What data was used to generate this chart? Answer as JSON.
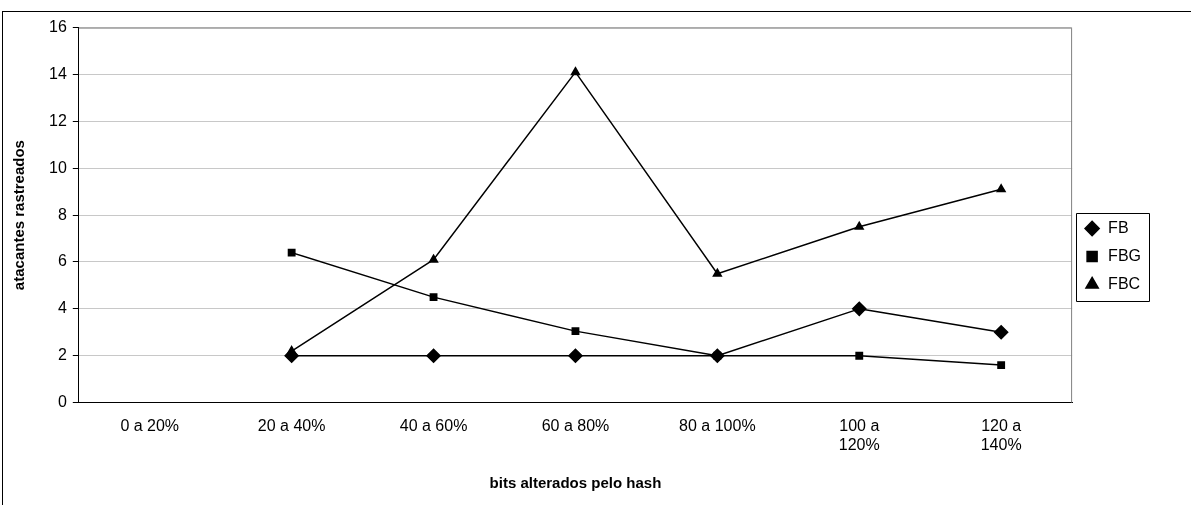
{
  "chart_data": {
    "type": "line",
    "xlabel": "bits alterados pelo hash",
    "ylabel": "atacantes rastreados",
    "categories": [
      "0 a 20%",
      "20 a 40%",
      "40 a 60%",
      "60 a 80%",
      "80 a 100%",
      "100 a 120%",
      "120 a 140%"
    ],
    "series": [
      {
        "name": "FB",
        "color": "#000000",
        "marker": "diamond",
        "values": [
          null,
          2,
          2,
          2,
          2,
          4,
          3
        ]
      },
      {
        "name": "FBG",
        "color": "#000000",
        "marker": "square",
        "values": [
          null,
          6.4,
          4.5,
          3.05,
          2,
          2,
          1.6
        ]
      },
      {
        "name": "FBC",
        "color": "#000000",
        "marker": "triangle",
        "values": [
          null,
          2.2,
          6.1,
          14.1,
          5.5,
          7.5,
          9.1
        ]
      }
    ],
    "ylim": [
      0,
      16
    ],
    "yticks": [
      0,
      2,
      4,
      6,
      8,
      10,
      12,
      14,
      16
    ],
    "grid": "y",
    "legend": "right",
    "line_style": "solid"
  }
}
